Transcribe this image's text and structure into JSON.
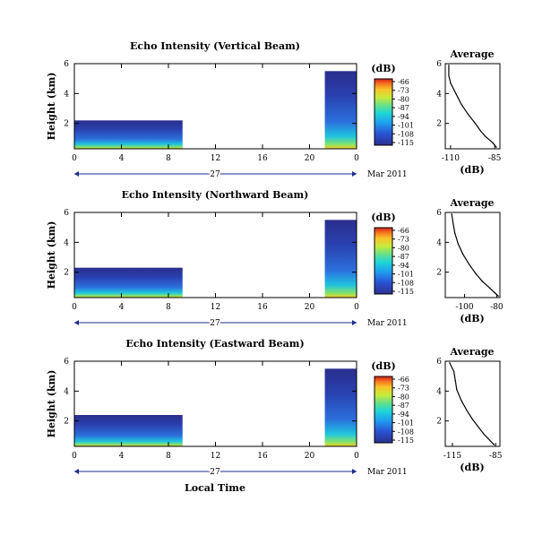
{
  "figure": {
    "xlabel": "Local Time",
    "date_day": "27",
    "date_month_year": "Mar 2011"
  },
  "chart_data": [
    {
      "type": "heatmap",
      "title": "Echo Intensity (Vertical Beam)",
      "ylabel": "Height (km)",
      "xticks": [
        "0",
        "4",
        "8",
        "12",
        "16",
        "20",
        "0"
      ],
      "yticks": [
        "2",
        "4",
        "6"
      ],
      "xlim": [
        0,
        24
      ],
      "ylim": [
        0.3,
        6
      ],
      "data_segments": [
        {
          "x": [
            0,
            9.2
          ],
          "top_km": 2.2
        },
        {
          "x": [
            21.3,
            24
          ],
          "top_km": 5.5
        }
      ],
      "colorbar": {
        "unit": "(dB)",
        "ticks": [
          "-66",
          "-73",
          "-80",
          "-87",
          "-94",
          "-101",
          "-108",
          "-115"
        ],
        "min": -115,
        "max": -66
      },
      "profile": {
        "title": "Average",
        "xlabel": "(dB)",
        "xticks": [
          "-110",
          "-85"
        ],
        "yticks": [
          "2",
          "4",
          "6"
        ],
        "xlim": [
          -113,
          -82
        ],
        "ylim": [
          0.3,
          6
        ],
        "x": [
          -111,
          -111,
          -110,
          -107,
          -104,
          -100,
          -96,
          -93,
          -90,
          -86,
          -84
        ],
        "y": [
          5.9,
          5.2,
          4.7,
          4.0,
          3.3,
          2.6,
          2.0,
          1.5,
          1.1,
          0.7,
          0.4
        ]
      }
    },
    {
      "type": "heatmap",
      "title": "Echo Intensity (Northward Beam)",
      "ylabel": "Height (km)",
      "xticks": [
        "0",
        "4",
        "8",
        "12",
        "16",
        "20",
        "0"
      ],
      "yticks": [
        "2",
        "4",
        "6"
      ],
      "xlim": [
        0,
        24
      ],
      "ylim": [
        0.3,
        6
      ],
      "data_segments": [
        {
          "x": [
            0,
            9.2
          ],
          "top_km": 2.3
        },
        {
          "x": [
            21.3,
            24
          ],
          "top_km": 5.5
        }
      ],
      "colorbar": {
        "unit": "(dB)",
        "ticks": [
          "-66",
          "-73",
          "-80",
          "-87",
          "-94",
          "-101",
          "-108",
          "-115"
        ],
        "min": -115,
        "max": -66
      },
      "profile": {
        "title": "Average",
        "xlabel": "(dB)",
        "xticks": [
          "-100",
          "-80"
        ],
        "yticks": [
          "2",
          "4",
          "6"
        ],
        "xlim": [
          -112,
          -78
        ],
        "ylim": [
          0.3,
          6
        ],
        "x": [
          -108,
          -107,
          -106,
          -104,
          -101,
          -97,
          -93,
          -89,
          -85,
          -81,
          -79
        ],
        "y": [
          5.9,
          5.2,
          4.6,
          3.9,
          3.2,
          2.5,
          1.9,
          1.4,
          1.0,
          0.6,
          0.4
        ]
      }
    },
    {
      "type": "heatmap",
      "title": "Echo Intensity (Eastward Beam)",
      "ylabel": "Height (km)",
      "xticks": [
        "0",
        "4",
        "8",
        "12",
        "16",
        "20",
        "0"
      ],
      "yticks": [
        "2",
        "4",
        "6"
      ],
      "xlim": [
        0,
        24
      ],
      "ylim": [
        0.3,
        6
      ],
      "data_segments": [
        {
          "x": [
            0,
            9.2
          ],
          "top_km": 2.4
        },
        {
          "x": [
            21.3,
            24
          ],
          "top_km": 5.5
        }
      ],
      "colorbar": {
        "unit": "(dB)",
        "ticks": [
          "-66",
          "-73",
          "-80",
          "-87",
          "-94",
          "-101",
          "-108",
          "-115"
        ],
        "min": -115,
        "max": -66
      },
      "profile": {
        "title": "Average",
        "xlabel": "(dB)",
        "xticks": [
          "-115",
          "-85"
        ],
        "yticks": [
          "2",
          "4",
          "6"
        ],
        "xlim": [
          -120,
          -82
        ],
        "ylim": [
          0.3,
          6
        ],
        "x": [
          -117,
          -114,
          -113,
          -112,
          -109,
          -105,
          -101,
          -97,
          -93,
          -89,
          -86
        ],
        "y": [
          5.9,
          5.3,
          4.7,
          4.1,
          3.4,
          2.7,
          2.1,
          1.6,
          1.1,
          0.7,
          0.4
        ]
      }
    }
  ]
}
